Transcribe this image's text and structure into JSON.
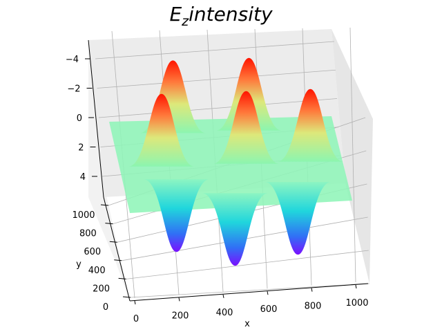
{
  "chart_data": {
    "type": "surface3d",
    "title_main": "E",
    "title_sub": "z",
    "title_rest": "intensity",
    "xlabel": "x",
    "ylabel": "y",
    "zlabel": "",
    "x_ticks": [
      "0",
      "200",
      "400",
      "600",
      "800",
      "1000"
    ],
    "y_ticks": [
      "0",
      "200",
      "400",
      "600",
      "800",
      "1000"
    ],
    "z_ticks": [
      "−4",
      "−2",
      "0",
      "2",
      "4"
    ],
    "xlim": [
      0,
      1000
    ],
    "ylim": [
      0,
      1000
    ],
    "zlim": [
      -5,
      5
    ],
    "colormap": "rainbow",
    "grid": true,
    "peaks": [
      {
        "x": 205,
        "y": 880,
        "z": 5
      },
      {
        "x": 560,
        "y": 880,
        "z": 5
      },
      {
        "x": 165,
        "y": 480,
        "z": 5
      },
      {
        "x": 560,
        "y": 480,
        "z": 5
      },
      {
        "x": 860,
        "y": 480,
        "z": 5
      }
    ],
    "troughs": [
      {
        "x": 240,
        "y": 320,
        "z": -5
      },
      {
        "x": 520,
        "y": 130,
        "z": -5
      },
      {
        "x": 810,
        "y": 240,
        "z": -5
      }
    ]
  }
}
